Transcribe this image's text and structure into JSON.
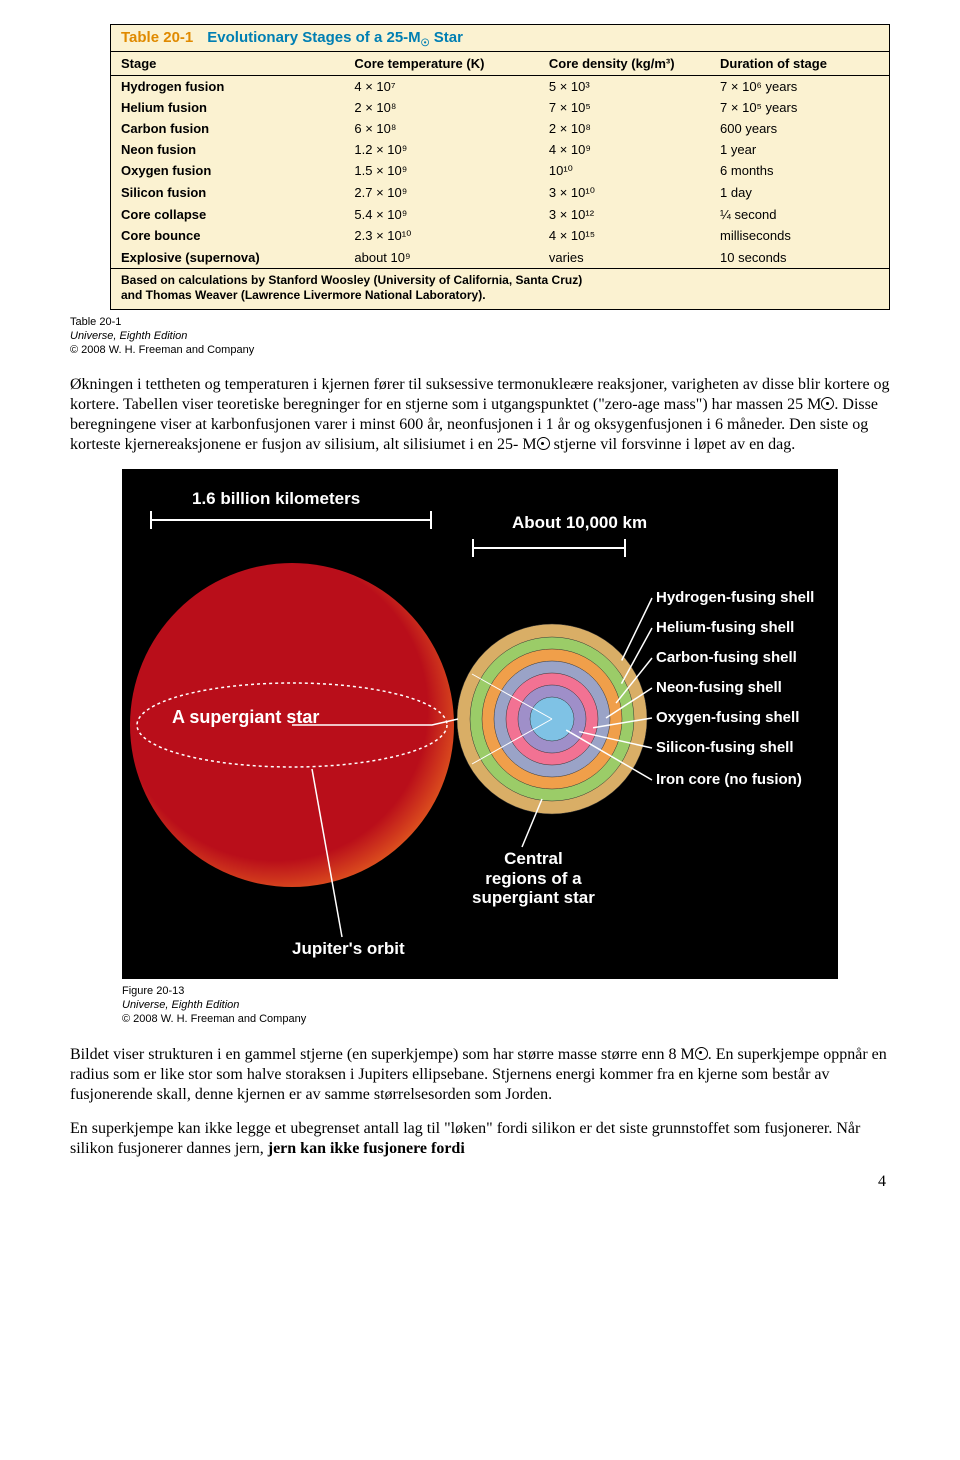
{
  "table": {
    "number": "Table 20-1",
    "title_prefix": "Evolutionary Stages of a 25-M",
    "title_suffix": " Star",
    "columns": [
      "Stage",
      "Core temperature (K)",
      "Core density (kg/m³)",
      "Duration of stage"
    ],
    "rows": [
      [
        "Hydrogen fusion",
        "4 × 10⁷",
        "5 × 10³",
        "7 × 10⁶ years"
      ],
      [
        "Helium fusion",
        "2 × 10⁸",
        "7 × 10⁵",
        "7 × 10⁵ years"
      ],
      [
        "Carbon fusion",
        "6 × 10⁸",
        "2 × 10⁸",
        "600 years"
      ],
      [
        "Neon fusion",
        "1.2 × 10⁹",
        "4 × 10⁹",
        "1 year"
      ],
      [
        "Oxygen fusion",
        "1.5 × 10⁹",
        "10¹⁰",
        "6 months"
      ],
      [
        "Silicon fusion",
        "2.7 × 10⁹",
        "3 × 10¹⁰",
        "1 day"
      ],
      [
        "Core collapse",
        "5.4 × 10⁹",
        "3 × 10¹²",
        "¼ second"
      ],
      [
        "Core bounce",
        "2.3 × 10¹⁰",
        "4 × 10¹⁵",
        "milliseconds"
      ],
      [
        "Explosive (supernova)",
        "about 10⁹",
        "varies",
        "10 seconds"
      ]
    ],
    "footnote_line1": "Based on calculations by Stanford Woosley (University of California, Santa Cruz)",
    "footnote_line2": "and Thomas Weaver (Lawrence Livermore National Laboratory).",
    "caption_ref": "Table 20-1",
    "caption_source": "Universe, Eighth Edition",
    "caption_copy": "© 2008 W. H. Freeman and Company"
  },
  "para": {
    "p1a": "Økningen i tettheten og temperaturen i kjernen fører til suksessive termonukleære reaksjoner, varigheten av disse blir kortere og kortere. Tabellen viser teoretiske beregninger for en stjerne som i utgangspunktet (\"zero-age mass\") har massen 25 M",
    "p1b": ". Disse beregningene viser at karbonfusjonen varer i minst 600 år, neonfusjonen i 1 år og oksygenfusjonen i 6 måneder. Den siste og korteste kjernereaksjonene er fusjon av silisium, alt silisiumet i en 25- M",
    "p1c": " stjerne vil forsvinne i løpet av en dag.",
    "p2a": "Bildet viser strukturen i en gammel stjerne (en superkjempe) som har større masse større enn 8 M",
    "p2b": ". En superkjempe oppnår en radius som er like stor som halve storaksen i Jupiters ellipsebane. Stjernens energi kommer fra en kjerne som består av fusjonerende skall, denne kjernen er av samme størrelsesorden som Jorden.",
    "p3a": "En superkjempe kan ikke legge et ubegrenset antall lag til \"løken\" fordi silikon er det siste grunnstoffet som fusjonerer. Når silikon fusjonerer dannes jern, ",
    "p3b": "jern kan ikke fusjonere fordi"
  },
  "figure": {
    "scale_large": "1.6 billion kilometers",
    "scale_small": "About 10,000 km",
    "star_label": "A supergiant star",
    "central_line1": "Central",
    "central_line2": "regions of a",
    "central_line3": "supergiant star",
    "jupiter": "Jupiter's orbit",
    "shells": [
      "Hydrogen-fusing shell",
      "Helium-fusing shell",
      "Carbon-fusing shell",
      "Neon-fusing shell",
      "Oxygen-fusing shell",
      "Silicon-fusing shell",
      "Iron core (no fusion)"
    ],
    "shell_colors": [
      "#d9ae66",
      "#9bcc68",
      "#f09f4a",
      "#9aa3c7",
      "#f27293",
      "#9f8fc9",
      "#7fc2e5"
    ],
    "star_outer_color": "#b90e1a",
    "star_edge_color": "#e6611f",
    "caption_ref": "Figure 20-13",
    "caption_source": "Universe, Eighth Edition",
    "caption_copy": "© 2008 W. H. Freeman and Company"
  },
  "pagenum": "4"
}
